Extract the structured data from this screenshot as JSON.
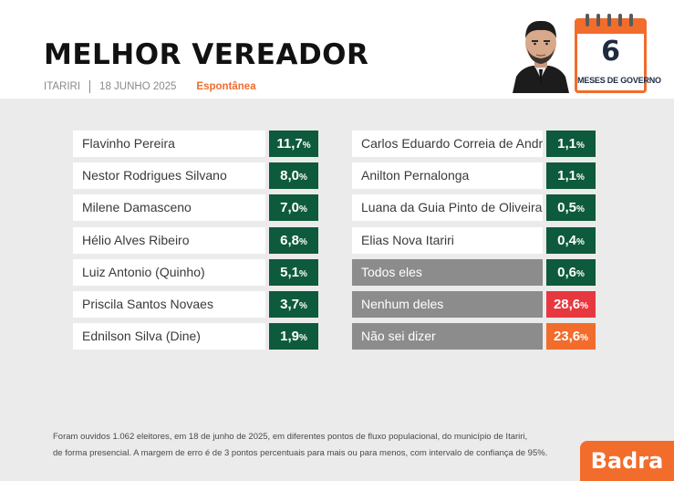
{
  "header": {
    "title": "MELHOR VEREADOR",
    "city": "ITARIRI",
    "date": "18 JUNHO 2025",
    "tag": "Espontânea"
  },
  "calendar": {
    "number": "6",
    "label": "MESES DE GOVERNO"
  },
  "chart_data": {
    "type": "table",
    "title": "MELHOR VEREADOR",
    "unit": "%",
    "left_column": [
      {
        "name": "Flavinho Pereira",
        "value": "11,7",
        "color": "green"
      },
      {
        "name": "Nestor Rodrigues Silvano",
        "value": "8,0",
        "color": "green"
      },
      {
        "name": "Milene Damasceno",
        "value": "7,0",
        "color": "green"
      },
      {
        "name": "Hélio Alves Ribeiro",
        "value": "6,8",
        "color": "green"
      },
      {
        "name": "Luiz Antonio (Quinho)",
        "value": "5,1",
        "color": "green"
      },
      {
        "name": "Priscila Santos Novaes",
        "value": "3,7",
        "color": "green"
      },
      {
        "name": "Ednilson Silva (Dine)",
        "value": "1,9",
        "color": "green"
      }
    ],
    "right_column": [
      {
        "name": "Carlos Eduardo Correia de Andrade",
        "value": "1,1",
        "color": "green"
      },
      {
        "name": "Anilton Pernalonga",
        "value": "1,1",
        "color": "green"
      },
      {
        "name": "Luana da Guia Pinto de Oliveira",
        "value": "0,5",
        "color": "green"
      },
      {
        "name": "Elias Nova Itariri",
        "value": "0,4",
        "color": "green"
      },
      {
        "name": "Todos eles",
        "value": "0,6",
        "color": "green",
        "name_style": "grey"
      },
      {
        "name": "Nenhum deles",
        "value": "28,6",
        "color": "red",
        "name_style": "grey"
      },
      {
        "name": "Não sei dizer",
        "value": "23,6",
        "color": "orange",
        "name_style": "grey"
      }
    ]
  },
  "colors": {
    "green": "#0e5a3c",
    "red": "#e8383f",
    "orange": "#f26c2c",
    "grey": "#8c8c8c"
  },
  "footer": {
    "line1": "Foram ouvidos 1.062 eleitores, em 18 de junho de 2025, em diferentes pontos de fluxo populacional, do município de Itariri,",
    "line2": "de forma presencial. A margem de erro é de 3 pontos percentuais para mais ou para menos, com intervalo de confiança de 95%."
  },
  "brand": "Badra"
}
